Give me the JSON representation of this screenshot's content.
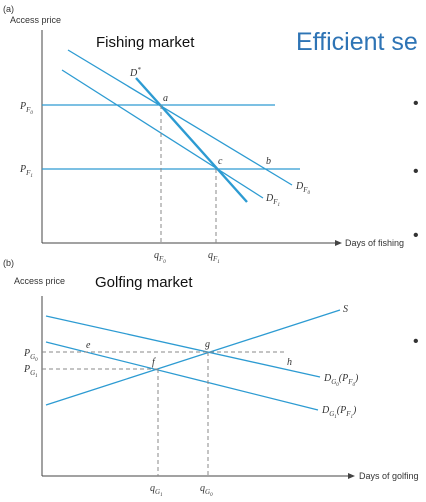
{
  "slide": {
    "title": "Efficient se",
    "bullets": [
      "•",
      "•",
      "•",
      "•"
    ]
  },
  "panel_a": {
    "tag": "(a)",
    "market": "Fishing market",
    "y_axis": "Access price",
    "x_axis": "Days of fishing",
    "price_high": {
      "main": "P",
      "sub": "F",
      "sub2": "0"
    },
    "price_low": {
      "main": "P",
      "sub": "F",
      "sub2": "1"
    },
    "q_high": {
      "main": "q",
      "sub": "F",
      "sub2": "0"
    },
    "q_low": {
      "main": "q",
      "sub": "F",
      "sub2": "1"
    },
    "curve_dstar": {
      "main": "D",
      "sup": "*"
    },
    "curve_d0": {
      "main": "D",
      "sub": "F",
      "sub2": "0"
    },
    "curve_d1": {
      "main": "D",
      "sub": "F",
      "sub2": "1"
    },
    "points": {
      "a": "a",
      "b": "b",
      "c": "c"
    }
  },
  "panel_b": {
    "tag": "(b)",
    "market": "Golfing market",
    "y_axis": "Access price",
    "x_axis": "Days of golfing",
    "price_high": {
      "main": "P",
      "sub": "G",
      "sub2": "0"
    },
    "price_low": {
      "main": "P",
      "sub": "G",
      "sub2": "1"
    },
    "q_low": {
      "main": "q",
      "sub": "G",
      "sub2": "1"
    },
    "q_high": {
      "main": "q",
      "sub": "G",
      "sub2": "0"
    },
    "supply": "S",
    "curve_d0": {
      "main": "D",
      "sub": "G",
      "sub2": "0",
      "paren_main": "P",
      "paren_sub": "F",
      "paren_sub2": "0"
    },
    "curve_d1": {
      "main": "D",
      "sub": "G",
      "sub2": "1",
      "paren_main": "P",
      "paren_sub": "F",
      "paren_sub2": "1"
    },
    "points": {
      "e": "e",
      "f": "f",
      "g": "g",
      "h": "h"
    }
  },
  "colors": {
    "curve": "#2d9bd2",
    "axis": "#444444",
    "dash": "#888888",
    "title": "#2e74b5"
  }
}
